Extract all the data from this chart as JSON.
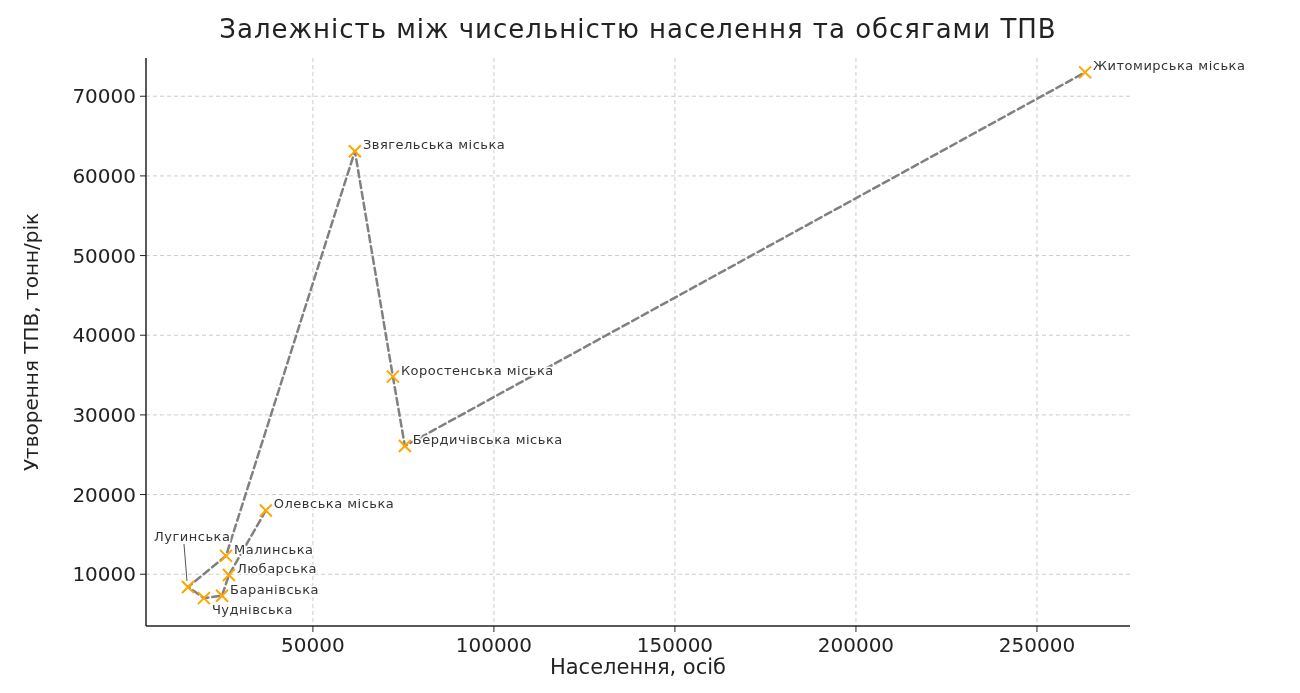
{
  "chart_data": {
    "type": "scatter",
    "title": "Залежність між чисельністю населення та обсягами ТПВ",
    "xlabel": "Населення, осіб",
    "ylabel": "Утворення ТПВ, тонн/рік",
    "series": [
      {
        "type": "line",
        "color": "#808080",
        "line_style": "dashed",
        "marker": "none",
        "x": [
          37000,
          26800,
          24900,
          19900,
          15500,
          26000,
          61600,
          72100,
          75400,
          263300
        ],
        "values": [
          18000,
          9900,
          7300,
          7000,
          8400,
          12300,
          63100,
          34800,
          26100,
          73000
        ]
      },
      {
        "type": "scatter",
        "color": "#ffa500",
        "marker": "cross",
        "x": [
          15500,
          19900,
          24900,
          26800,
          26000,
          37000,
          61600,
          72100,
          75400,
          263300
        ],
        "values": [
          8400,
          7000,
          7300,
          9900,
          12300,
          18000,
          63100,
          34800,
          26100,
          73000
        ]
      }
    ],
    "annotations": [
      {
        "text": "Лугинська",
        "x": 15500,
        "y": 8400
      },
      {
        "text": "Чуднівська",
        "x": 19900,
        "y": 7000
      },
      {
        "text": "Баранівська",
        "x": 24900,
        "y": 7300
      },
      {
        "text": "Любарська",
        "x": 26800,
        "y": 9900
      },
      {
        "text": "Малинська",
        "x": 26000,
        "y": 12300
      },
      {
        "text": "Олевська міська",
        "x": 37000,
        "y": 18000
      },
      {
        "text": "Звягельська міська",
        "x": 61600,
        "y": 63100
      },
      {
        "text": "Коростенська міська",
        "x": 72100,
        "y": 34800
      },
      {
        "text": "Бердичівська міська",
        "x": 75400,
        "y": 26100
      },
      {
        "text": "Житомирська міська",
        "x": 263300,
        "y": 73000
      }
    ],
    "xlim": [
      3900,
      275700
    ],
    "ylim": [
      3500,
      74800
    ],
    "xticks": [
      50000,
      100000,
      150000,
      200000,
      250000
    ],
    "yticks": [
      10000,
      20000,
      30000,
      40000,
      50000,
      60000,
      70000
    ],
    "grid": true
  }
}
